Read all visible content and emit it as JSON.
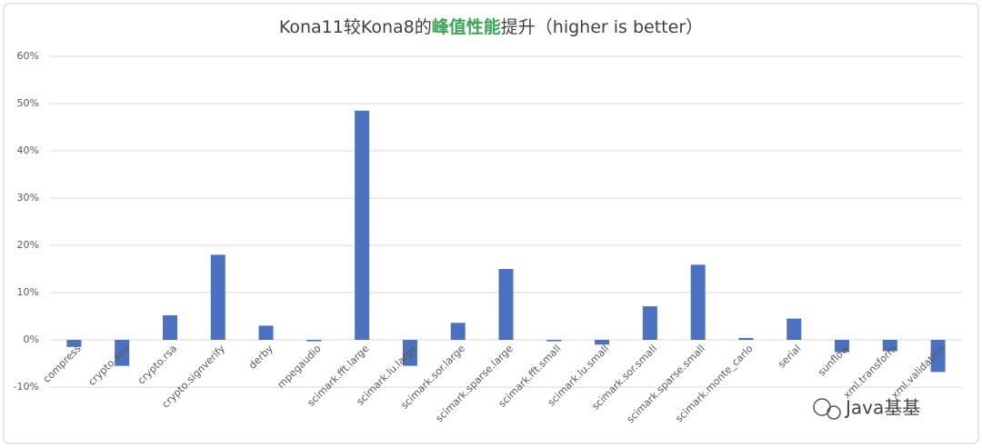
{
  "chart_data": {
    "type": "bar",
    "title_segments": [
      "Kona11较Kona8的",
      "峰值性能",
      "提升（higher is better）"
    ],
    "title_colors": [
      "#404040",
      "#3aa655",
      "#404040"
    ],
    "categories": [
      "compress",
      "crypto.aes",
      "crypto.rsa",
      "crypto.signverify",
      "derby",
      "mpegaudio",
      "scimark.fft.large",
      "scimark.lu.large",
      "scimark.sor.large",
      "scimark.sparse.large",
      "scimark.fft.small",
      "scimark.lu.small",
      "scimark.sor.small",
      "scimark.sparse.small",
      "scimark.monte_carlo",
      "serial",
      "sunflow",
      "xml.transform",
      "xml.validation"
    ],
    "values": [
      -1.5,
      -5.5,
      5.2,
      18,
      3,
      -0.3,
      48.5,
      -5.5,
      3.6,
      15,
      -0.3,
      -1,
      7.1,
      15.9,
      0.4,
      4.5,
      -2.6,
      -2.4,
      -6.8
    ],
    "color": "#4a72c0",
    "ylim": [
      -10,
      60
    ],
    "yticks": [
      {
        "value": -10,
        "label": "-10%"
      },
      {
        "value": 0,
        "label": "0%"
      },
      {
        "value": 10,
        "label": "10%"
      },
      {
        "value": 20,
        "label": "20%"
      },
      {
        "value": 30,
        "label": "30%"
      },
      {
        "value": 40,
        "label": "40%"
      },
      {
        "value": 50,
        "label": "50%"
      },
      {
        "value": 60,
        "label": "60%"
      }
    ],
    "grid": true,
    "watermark": "Java基基"
  }
}
